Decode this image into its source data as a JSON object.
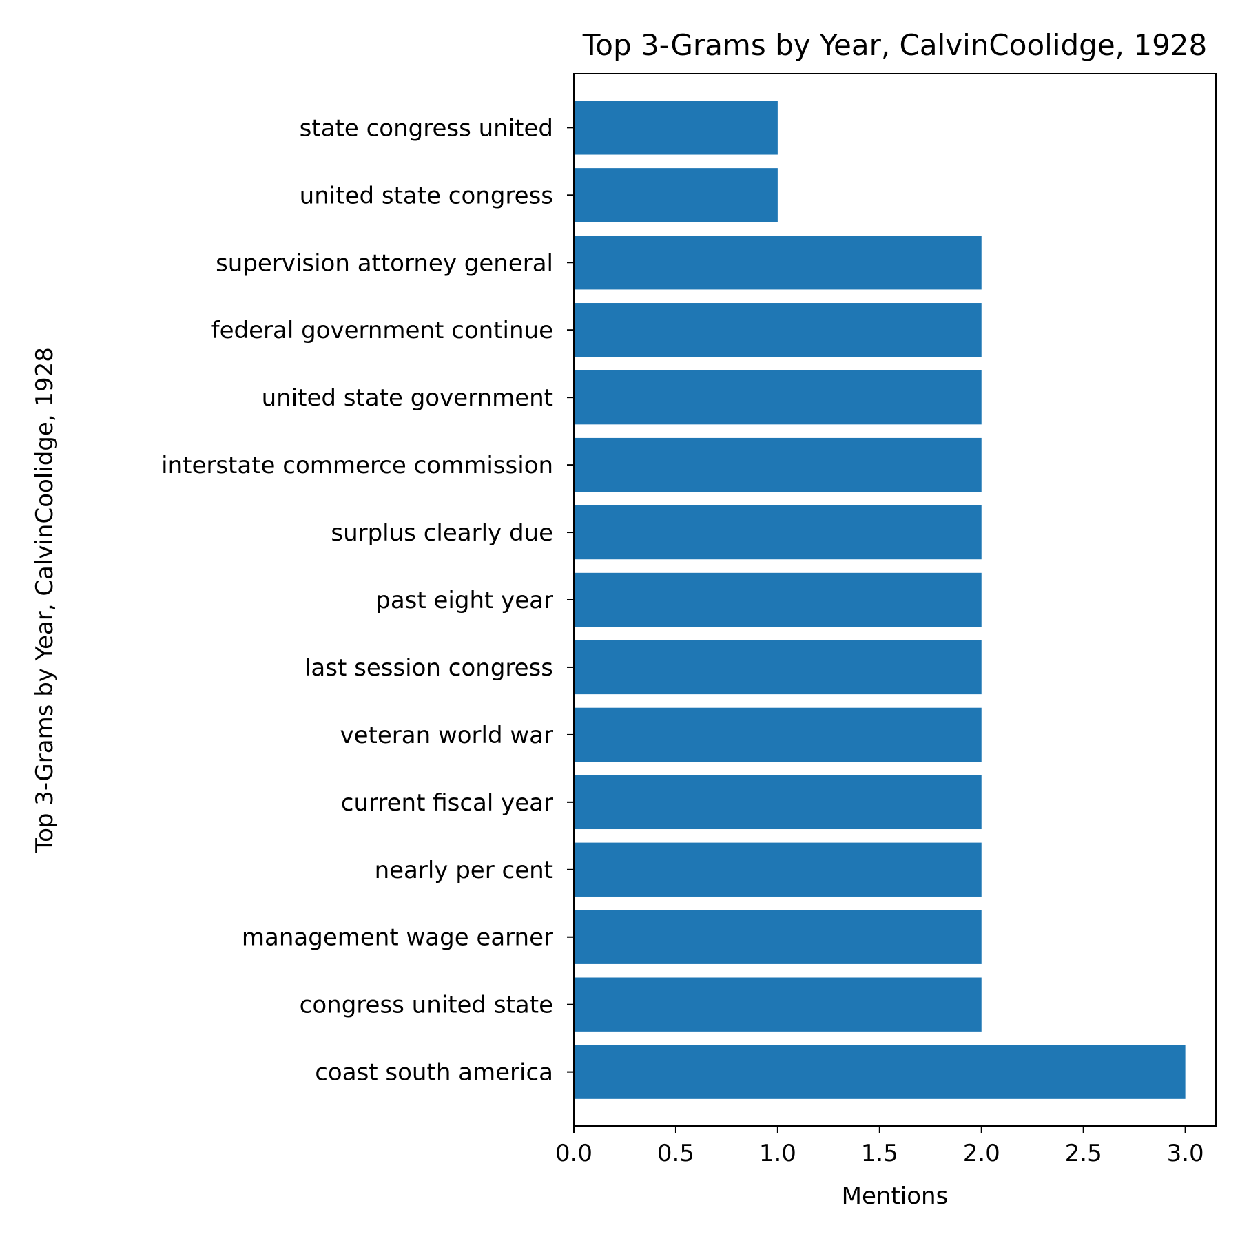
{
  "chart_data": {
    "type": "bar",
    "orientation": "horizontal",
    "title": "Top 3-Grams by Year, CalvinCoolidge, 1928",
    "xlabel": "Mentions",
    "ylabel": "Top 3-Grams by Year, CalvinCoolidge, 1928",
    "categories": [
      "coast south america",
      "congress united state",
      "management wage earner",
      "nearly per cent",
      "current fiscal year",
      "veteran world war",
      "last session congress",
      "past eight year",
      "surplus clearly due",
      "interstate commerce commission",
      "united state government",
      "federal government continue",
      "supervision attorney general",
      "united state congress",
      "state congress united"
    ],
    "values": [
      3,
      2,
      2,
      2,
      2,
      2,
      2,
      2,
      2,
      2,
      2,
      2,
      2,
      1,
      1
    ],
    "xlim": [
      0,
      3.15
    ],
    "xticks": [
      "0.0",
      "0.5",
      "1.0",
      "1.5",
      "2.0",
      "2.5",
      "3.0"
    ],
    "bar_color": "#1f77b4",
    "grid": false,
    "legend": "none"
  }
}
